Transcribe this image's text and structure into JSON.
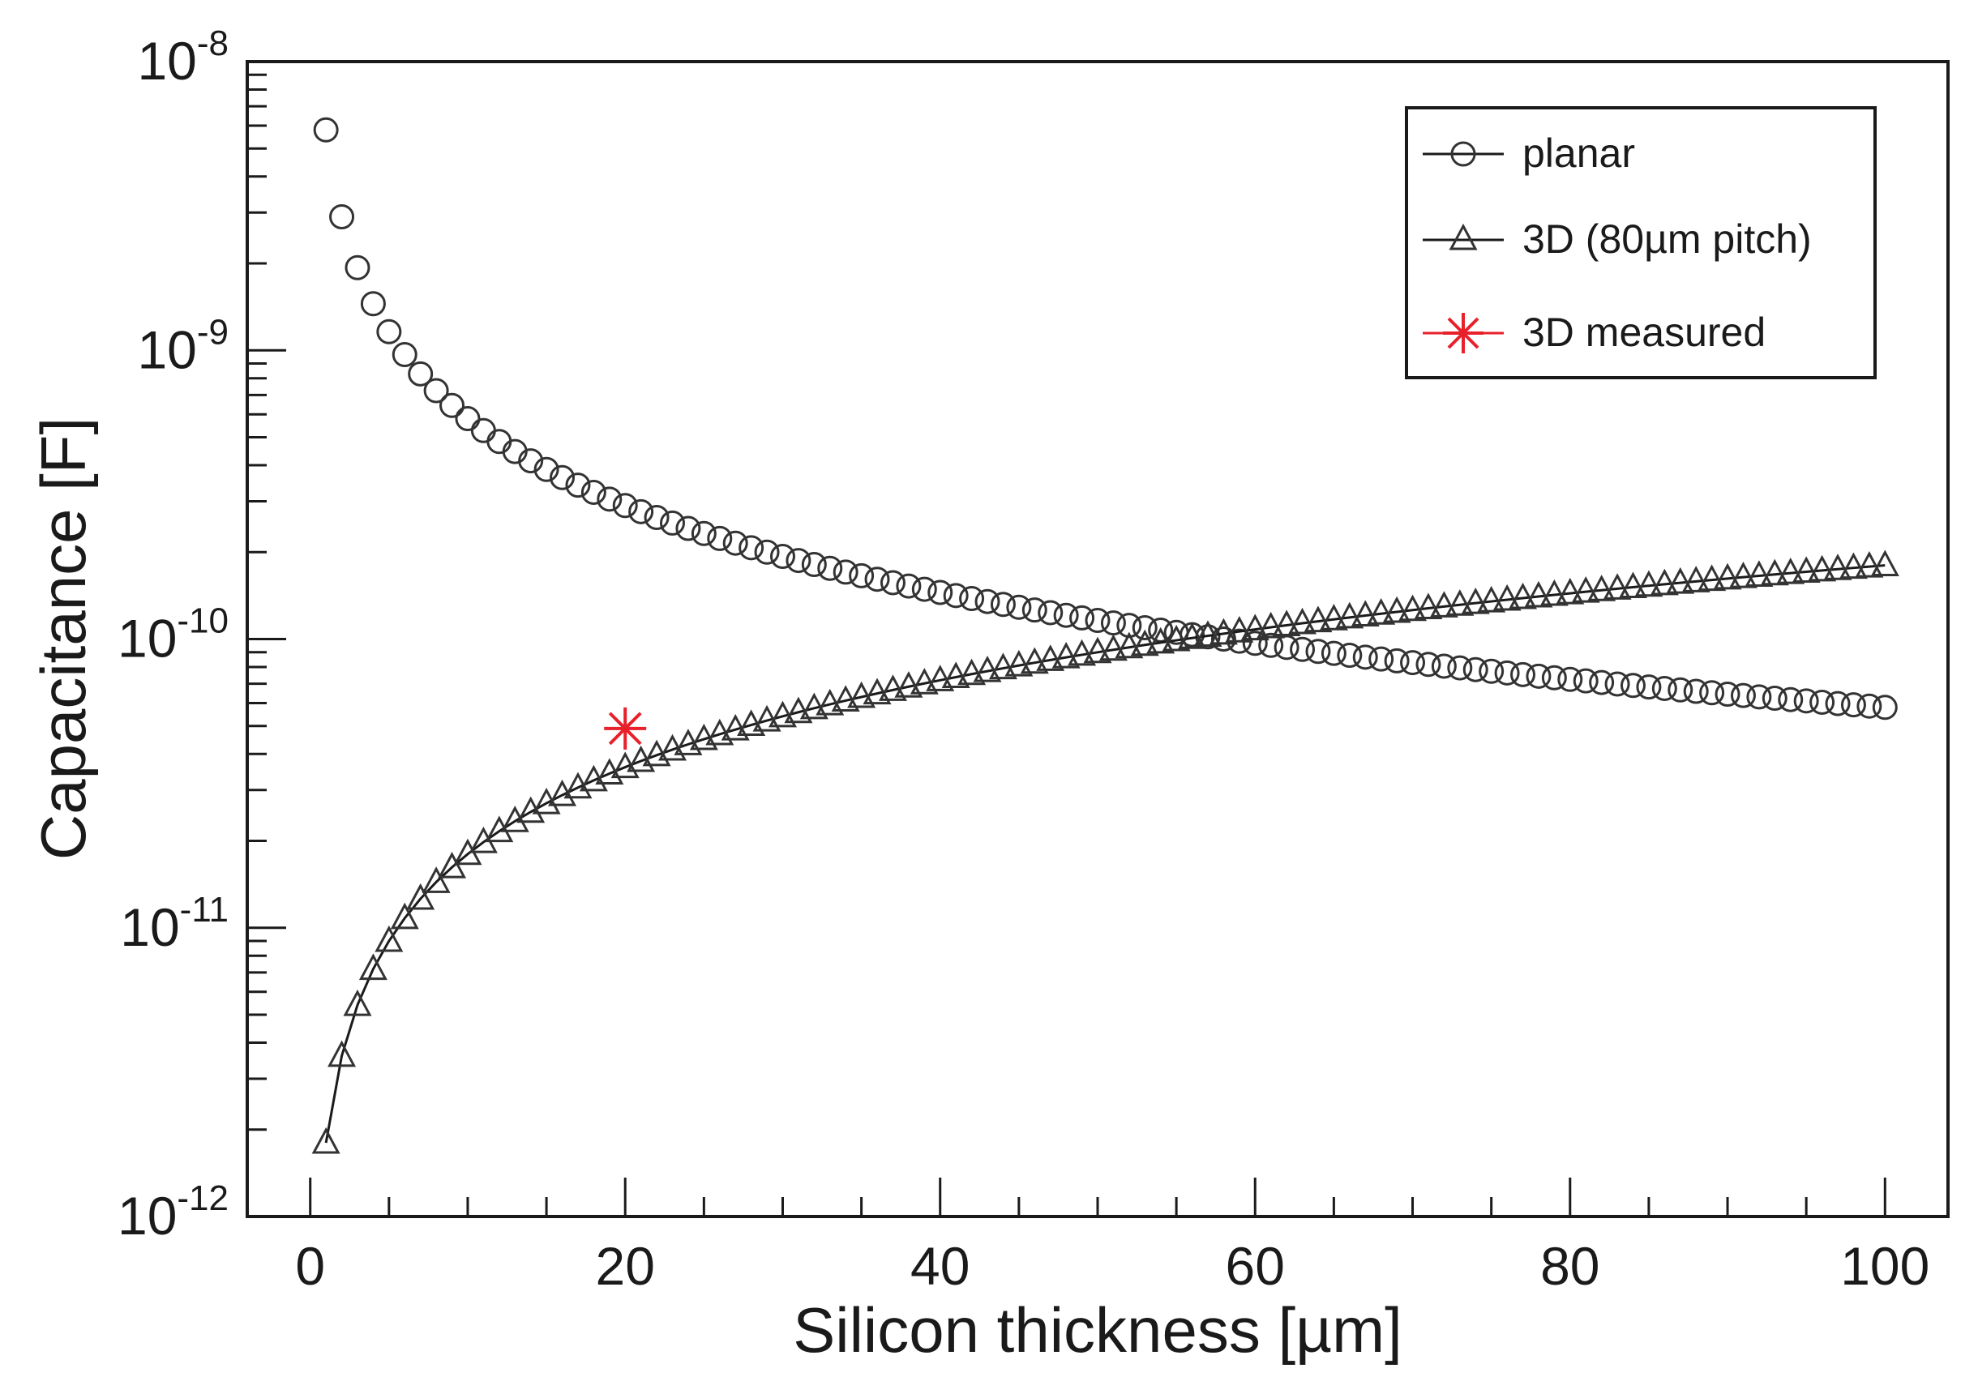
{
  "chart_data": {
    "type": "scatter",
    "title": "",
    "xlabel": "Silicon thickness [µm]",
    "ylabel": "Capacitance [F]",
    "xlim": [
      -4,
      104
    ],
    "ylim": [
      1e-12,
      1e-08
    ],
    "yscale": "log",
    "x_ticks": [
      {
        "value": 0,
        "label": "0"
      },
      {
        "value": 20,
        "label": "20"
      },
      {
        "value": 40,
        "label": "40"
      },
      {
        "value": 60,
        "label": "60"
      },
      {
        "value": 80,
        "label": "80"
      },
      {
        "value": 100,
        "label": "100"
      }
    ],
    "y_ticks": [
      {
        "value": 1e-08,
        "base": "10",
        "exp": "-8"
      },
      {
        "value": 1e-09,
        "base": "10",
        "exp": "-9"
      },
      {
        "value": 1e-10,
        "base": "10",
        "exp": "-10"
      },
      {
        "value": 1e-11,
        "base": "10",
        "exp": "-11"
      },
      {
        "value": 1e-12,
        "base": "10",
        "exp": "-12"
      }
    ],
    "series": [
      {
        "name": "planar",
        "marker": "circle",
        "color": "#333333",
        "model": "C = 5.8e-9 / t",
        "x": [
          1,
          2,
          3,
          4,
          5,
          6,
          7,
          8,
          9,
          10,
          11,
          12,
          13,
          14,
          15,
          16,
          17,
          18,
          19,
          20,
          21,
          22,
          23,
          24,
          25,
          26,
          27,
          28,
          29,
          30,
          31,
          32,
          33,
          34,
          35,
          36,
          37,
          38,
          39,
          40,
          41,
          42,
          43,
          44,
          45,
          46,
          47,
          48,
          49,
          50,
          51,
          52,
          53,
          54,
          55,
          56,
          57,
          58,
          59,
          60,
          61,
          62,
          63,
          64,
          65,
          66,
          67,
          68,
          69,
          70,
          71,
          72,
          73,
          74,
          75,
          76,
          77,
          78,
          79,
          80,
          81,
          82,
          83,
          84,
          85,
          86,
          87,
          88,
          89,
          90,
          91,
          92,
          93,
          94,
          95,
          96,
          97,
          98,
          99,
          100
        ]
      },
      {
        "name": "3D (80µm pitch)",
        "marker": "triangle",
        "color": "#333333",
        "model": "C = 1.8e-12 * t",
        "x": [
          1,
          2,
          3,
          4,
          5,
          6,
          7,
          8,
          9,
          10,
          11,
          12,
          13,
          14,
          15,
          16,
          17,
          18,
          19,
          20,
          21,
          22,
          23,
          24,
          25,
          26,
          27,
          28,
          29,
          30,
          31,
          32,
          33,
          34,
          35,
          36,
          37,
          38,
          39,
          40,
          41,
          42,
          43,
          44,
          45,
          46,
          47,
          48,
          49,
          50,
          51,
          52,
          53,
          54,
          55,
          56,
          57,
          58,
          59,
          60,
          61,
          62,
          63,
          64,
          65,
          66,
          67,
          68,
          69,
          70,
          71,
          72,
          73,
          74,
          75,
          76,
          77,
          78,
          79,
          80,
          81,
          82,
          83,
          84,
          85,
          86,
          87,
          88,
          89,
          90,
          91,
          92,
          93,
          94,
          95,
          96,
          97,
          98,
          99,
          100
        ]
      },
      {
        "name": "3D measured",
        "marker": "star",
        "color": "#e8202a",
        "x": [
          20
        ],
        "y": [
          4.9e-11
        ]
      }
    ],
    "legend": {
      "position": "top-right",
      "entries": [
        "planar",
        "3D (80µm pitch)",
        "3D measured"
      ]
    }
  }
}
